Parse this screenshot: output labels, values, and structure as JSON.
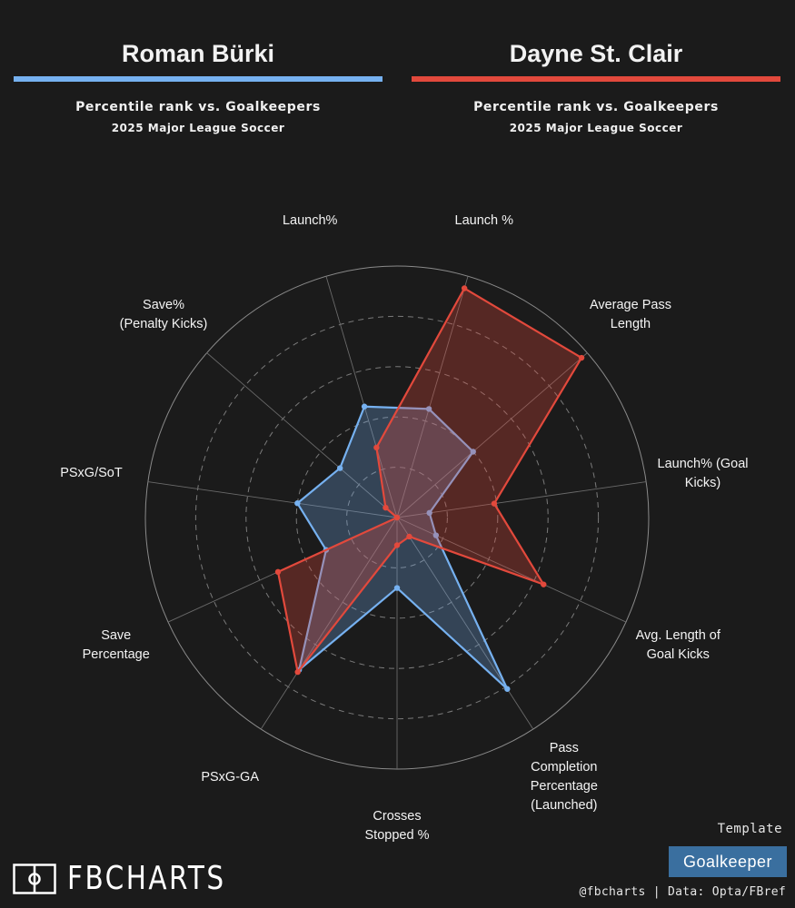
{
  "header": {
    "left": {
      "name": "Roman Bürki",
      "subtitle": "Percentile rank vs. Goalkeepers",
      "league": "2025 Major League Soccer"
    },
    "right": {
      "name": "Dayne St. Clair",
      "subtitle": "Percentile rank vs. Goalkeepers",
      "league": "2025 Major League Soccer"
    }
  },
  "chart_data": {
    "type": "radar",
    "axes": [
      "Launch%",
      "Launch %",
      "Average Pass\nLength",
      "Launch% (Goal\nKicks)",
      "Avg. Length of\nGoal Kicks",
      "Pass\nCompletion\nPercentage\n(Launched)",
      "Crosses\nStopped %",
      "PSxG-GA",
      "Save\nPercentage",
      "PSxG/SoT",
      "Save%\n(Penalty Kicks)"
    ],
    "range": [
      0,
      100
    ],
    "series": [
      {
        "name": "Roman Bürki",
        "color": "#76b1f0",
        "values": [
          46,
          45,
          40,
          13,
          17,
          81,
          28,
          72,
          31,
          40,
          30
        ]
      },
      {
        "name": "Dayne St. Clair",
        "color": "#e2493c",
        "values": [
          29,
          95,
          97,
          39,
          64,
          9,
          11,
          73,
          52,
          0,
          6
        ]
      }
    ]
  },
  "branding": {
    "logo_text": "FBCHARTS",
    "template_label": "Template",
    "template_value": "Goalkeeper",
    "credits": "@fbcharts | Data: Opta/FBref"
  }
}
